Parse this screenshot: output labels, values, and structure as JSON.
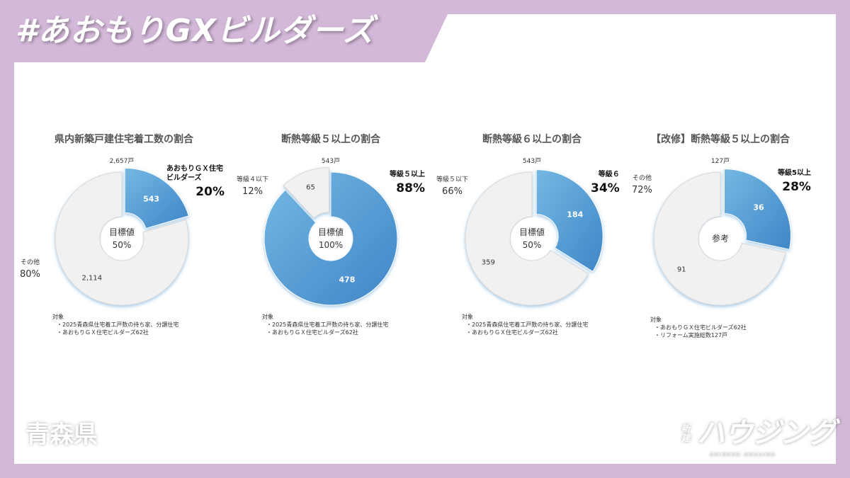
{
  "header": {
    "title": "#あおもりGXビルダーズ"
  },
  "footer": {
    "prefecture": "青森県",
    "logo_text": "新建ハウジング"
  },
  "colors": {
    "background": "#d4b8d9",
    "highlight_start": "#74b8e2",
    "highlight_end": "#3f86c8",
    "other": "#f1f1f1"
  },
  "chart_data": [
    {
      "type": "pie",
      "title": "県内新築戸建住宅着工数の割合",
      "total_label": "2,657戸",
      "center_label": "目標値",
      "center_value": "50%",
      "slices": [
        {
          "label": "あおもりＧＸ住宅ビルダーズ",
          "value": 543,
          "value_label": "543",
          "percent": "20%",
          "highlight": true
        },
        {
          "label": "その他",
          "value": 2114,
          "value_label": "2,114",
          "percent": "80%",
          "highlight": false
        }
      ],
      "notes_title": "対象",
      "notes": [
        "2025青森県住宅着工戸数の持ち家、分譲住宅",
        "あおもりＧＸ住宅ビルダーズ62社"
      ]
    },
    {
      "type": "pie",
      "title": "断熱等級５以上の割合",
      "total_label": "543戸",
      "center_label": "目標値",
      "center_value": "100%",
      "slices": [
        {
          "label": "等級５以上",
          "value": 478,
          "value_label": "478",
          "percent": "88%",
          "highlight": true
        },
        {
          "label": "等級４以下",
          "value": 65,
          "value_label": "65",
          "percent": "12%",
          "highlight": false
        }
      ],
      "notes_title": "対象",
      "notes": [
        "2025青森県住宅着工戸数の持ち家、分譲住宅",
        "あおもりＧＸ住宅ビルダーズ62社"
      ]
    },
    {
      "type": "pie",
      "title": "断熱等級６以上の割合",
      "total_label": "543戸",
      "center_label": "目標値",
      "center_value": "50%",
      "slices": [
        {
          "label": "等級６",
          "value": 184,
          "value_label": "184",
          "percent": "34%",
          "highlight": true
        },
        {
          "label": "等級５以下",
          "value": 359,
          "value_label": "359",
          "percent": "66%",
          "highlight": false
        }
      ],
      "notes_title": "対象",
      "notes": [
        "2025青森県住宅着工戸数の持ち家、分譲住宅",
        "あおもりＧＸ住宅ビルダーズ62社"
      ]
    },
    {
      "type": "pie",
      "title": "【改修】断熱等級５以上の割合",
      "total_label": "127戸",
      "center_label": "参考",
      "center_value": "",
      "slices": [
        {
          "label": "等級5以上",
          "value": 36,
          "value_label": "36",
          "percent": "28%",
          "highlight": true
        },
        {
          "label": "その他",
          "value": 91,
          "value_label": "91",
          "percent": "72%",
          "highlight": false
        }
      ],
      "notes_title": "対象",
      "notes": [
        "あおもりＧＸ住宅ビルダーズ62社",
        "リフォーム実施総数127戸"
      ]
    }
  ]
}
